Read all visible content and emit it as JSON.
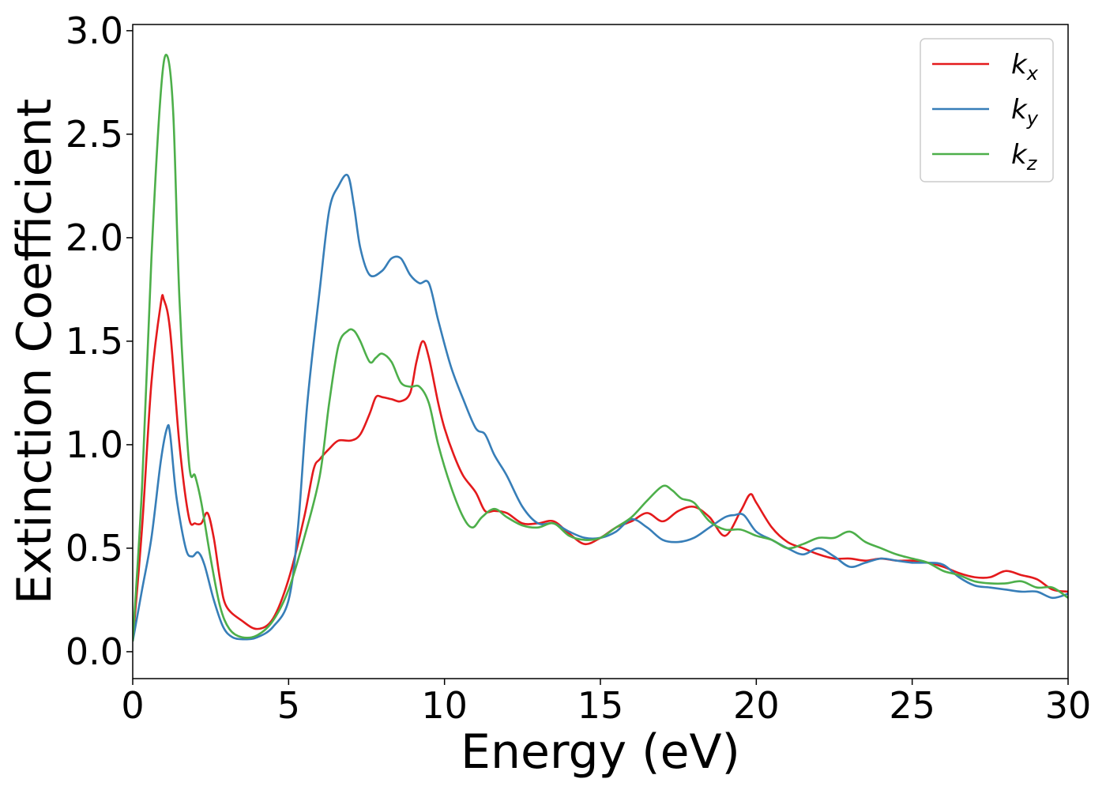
{
  "chart_data": {
    "type": "line",
    "xlabel": "Energy (eV)",
    "ylabel": "Extinction Coefficient",
    "xlim": [
      0,
      30
    ],
    "ylim": [
      -0.13,
      3.03
    ],
    "xticks": [
      0,
      5,
      10,
      15,
      20,
      25,
      30
    ],
    "yticks": [
      0.0,
      0.5,
      1.0,
      1.5,
      2.0,
      2.5,
      3.0
    ],
    "xtick_labels": [
      "0",
      "5",
      "10",
      "15",
      "20",
      "25",
      "30"
    ],
    "ytick_labels": [
      "0.0",
      "0.5",
      "1.0",
      "1.5",
      "2.0",
      "2.5",
      "3.0"
    ],
    "grid": false,
    "legend_position": "top-right",
    "series": [
      {
        "name": "k_x",
        "legend_main": "k",
        "legend_sub": "x",
        "color": "#e41a1c",
        "x": [
          0,
          0.3,
          0.6,
          0.9,
          1.0,
          1.2,
          1.5,
          1.8,
          2.0,
          2.2,
          2.4,
          2.6,
          2.8,
          3.0,
          3.5,
          4.0,
          4.5,
          5.0,
          5.5,
          5.8,
          6.0,
          6.3,
          6.6,
          7.0,
          7.3,
          7.6,
          7.8,
          8.0,
          8.3,
          8.6,
          8.9,
          9.1,
          9.3,
          9.5,
          9.8,
          10.0,
          10.3,
          10.6,
          11.0,
          11.3,
          11.6,
          12.0,
          12.5,
          13.0,
          13.5,
          14.0,
          14.5,
          15.0,
          15.5,
          16.0,
          16.5,
          17.0,
          17.5,
          18.0,
          18.5,
          19.0,
          19.5,
          19.8,
          20.0,
          20.5,
          21.0,
          21.5,
          22.0,
          22.5,
          23.0,
          23.5,
          24.0,
          24.5,
          25.0,
          25.5,
          26.0,
          26.5,
          27.0,
          27.5,
          28.0,
          28.5,
          29.0,
          29.5,
          30.0
        ],
        "values": [
          0.05,
          0.6,
          1.3,
          1.68,
          1.7,
          1.55,
          1.0,
          0.65,
          0.62,
          0.62,
          0.67,
          0.55,
          0.35,
          0.22,
          0.15,
          0.11,
          0.16,
          0.35,
          0.65,
          0.88,
          0.93,
          0.98,
          1.02,
          1.02,
          1.05,
          1.15,
          1.23,
          1.23,
          1.22,
          1.21,
          1.25,
          1.4,
          1.5,
          1.42,
          1.2,
          1.08,
          0.95,
          0.85,
          0.77,
          0.68,
          0.68,
          0.67,
          0.62,
          0.62,
          0.63,
          0.57,
          0.52,
          0.55,
          0.6,
          0.63,
          0.67,
          0.63,
          0.68,
          0.7,
          0.65,
          0.56,
          0.68,
          0.76,
          0.72,
          0.6,
          0.53,
          0.5,
          0.47,
          0.45,
          0.45,
          0.44,
          0.45,
          0.44,
          0.44,
          0.43,
          0.41,
          0.38,
          0.36,
          0.36,
          0.39,
          0.37,
          0.35,
          0.3,
          0.29
        ]
      },
      {
        "name": "k_y",
        "legend_main": "k",
        "legend_sub": "y",
        "color": "#377eb8",
        "x": [
          0,
          0.3,
          0.6,
          0.9,
          1.1,
          1.2,
          1.4,
          1.7,
          1.9,
          2.1,
          2.3,
          2.6,
          2.9,
          3.2,
          3.6,
          4.0,
          4.5,
          5.0,
          5.3,
          5.6,
          6.0,
          6.3,
          6.6,
          6.9,
          7.1,
          7.3,
          7.6,
          8.0,
          8.3,
          8.6,
          8.9,
          9.2,
          9.5,
          9.8,
          10.2,
          10.6,
          11.0,
          11.3,
          11.6,
          12.0,
          12.5,
          13.0,
          13.5,
          14.0,
          14.5,
          15.0,
          15.5,
          16.0,
          16.5,
          17.0,
          17.5,
          18.0,
          18.5,
          19.0,
          19.3,
          19.6,
          20.0,
          20.5,
          21.0,
          21.5,
          22.0,
          22.5,
          23.0,
          23.5,
          24.0,
          24.5,
          25.0,
          25.5,
          26.0,
          26.5,
          27.0,
          27.5,
          28.0,
          28.5,
          29.0,
          29.5,
          30.0
        ],
        "values": [
          0.05,
          0.3,
          0.55,
          0.92,
          1.08,
          1.05,
          0.75,
          0.5,
          0.46,
          0.48,
          0.42,
          0.25,
          0.12,
          0.07,
          0.06,
          0.07,
          0.12,
          0.25,
          0.6,
          1.2,
          1.75,
          2.13,
          2.25,
          2.3,
          2.15,
          1.95,
          1.82,
          1.84,
          1.9,
          1.9,
          1.82,
          1.78,
          1.78,
          1.6,
          1.38,
          1.22,
          1.08,
          1.05,
          0.95,
          0.85,
          0.7,
          0.62,
          0.62,
          0.58,
          0.55,
          0.55,
          0.58,
          0.64,
          0.6,
          0.54,
          0.53,
          0.55,
          0.6,
          0.65,
          0.66,
          0.66,
          0.58,
          0.54,
          0.5,
          0.47,
          0.5,
          0.46,
          0.41,
          0.43,
          0.45,
          0.44,
          0.43,
          0.43,
          0.42,
          0.36,
          0.32,
          0.31,
          0.3,
          0.29,
          0.29,
          0.26,
          0.28
        ]
      },
      {
        "name": "k_z",
        "legend_main": "k",
        "legend_sub": "z",
        "color": "#4daf4a",
        "x": [
          0,
          0.3,
          0.6,
          0.9,
          1.1,
          1.3,
          1.5,
          1.8,
          2.0,
          2.2,
          2.5,
          2.8,
          3.1,
          3.5,
          4.0,
          4.5,
          5.0,
          5.5,
          6.0,
          6.3,
          6.6,
          6.9,
          7.1,
          7.3,
          7.6,
          7.8,
          8.0,
          8.3,
          8.6,
          8.9,
          9.2,
          9.5,
          9.8,
          10.2,
          10.6,
          10.9,
          11.2,
          11.6,
          12.0,
          12.5,
          13.0,
          13.5,
          14.0,
          14.5,
          15.0,
          15.5,
          16.0,
          16.5,
          17.0,
          17.3,
          17.6,
          18.0,
          18.5,
          19.0,
          19.5,
          20.0,
          20.5,
          21.0,
          21.5,
          22.0,
          22.5,
          23.0,
          23.5,
          24.0,
          24.5,
          25.0,
          25.5,
          26.0,
          26.5,
          27.0,
          27.5,
          28.0,
          28.5,
          29.0,
          29.5,
          30.0
        ],
        "values": [
          0.05,
          0.8,
          1.9,
          2.7,
          2.88,
          2.6,
          1.7,
          0.92,
          0.85,
          0.72,
          0.45,
          0.22,
          0.11,
          0.07,
          0.08,
          0.15,
          0.3,
          0.55,
          0.85,
          1.2,
          1.48,
          1.55,
          1.55,
          1.5,
          1.4,
          1.42,
          1.44,
          1.4,
          1.3,
          1.28,
          1.28,
          1.2,
          1.0,
          0.8,
          0.65,
          0.6,
          0.65,
          0.69,
          0.65,
          0.61,
          0.6,
          0.62,
          0.56,
          0.54,
          0.55,
          0.6,
          0.65,
          0.73,
          0.8,
          0.78,
          0.74,
          0.72,
          0.63,
          0.59,
          0.59,
          0.56,
          0.54,
          0.5,
          0.52,
          0.55,
          0.55,
          0.58,
          0.53,
          0.5,
          0.47,
          0.45,
          0.43,
          0.39,
          0.37,
          0.34,
          0.33,
          0.33,
          0.34,
          0.31,
          0.31,
          0.26
        ]
      }
    ]
  }
}
